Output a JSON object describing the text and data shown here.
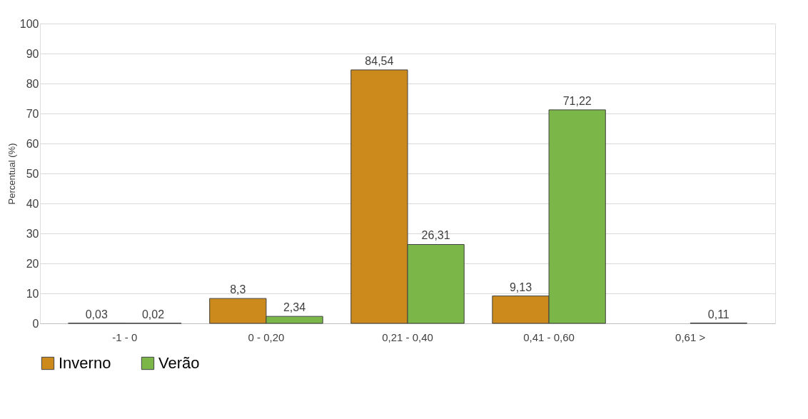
{
  "chart_data": {
    "type": "bar",
    "ylabel": "Percentual (%)",
    "categories": [
      "-1 - 0",
      "0 - 0,20",
      "0,21 - 0,40",
      "0,41 - 0,60",
      "0,61 >"
    ],
    "series": [
      {
        "name": "Inverno",
        "color": "#cc8a1c",
        "values": [
          0.03,
          8.3,
          84.54,
          9.13,
          null
        ],
        "value_labels": [
          "0,03",
          "8,3",
          "84,54",
          "9,13",
          null
        ]
      },
      {
        "name": "Verão",
        "color": "#7ab648",
        "values": [
          0.02,
          2.34,
          26.31,
          71.22,
          0.11
        ],
        "value_labels": [
          "0,02",
          "2,34",
          "26,31",
          "71,22",
          "0,11"
        ]
      }
    ],
    "ylim": [
      0,
      100
    ],
    "yticks": [
      0,
      10,
      20,
      30,
      40,
      50,
      60,
      70,
      80,
      90,
      100
    ],
    "grid": "y",
    "legend": "bottom"
  }
}
